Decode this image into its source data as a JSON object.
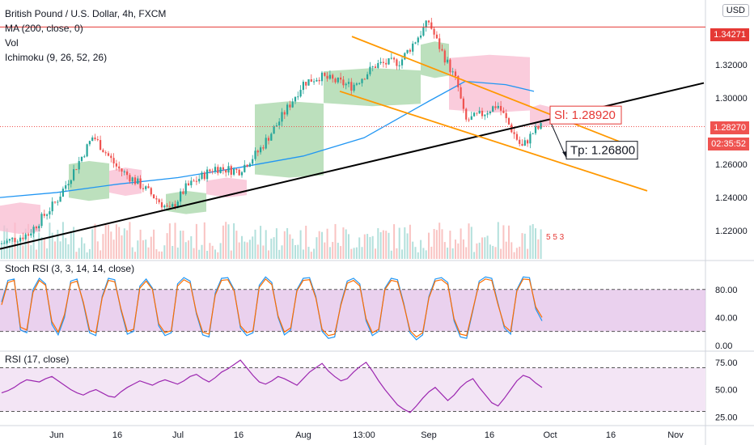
{
  "legend": {
    "title": "British Pound / U.S. Dollar, 4h, FXCM",
    "ma": "MA (200, close, 0)",
    "vol": "Vol",
    "ichimoku": "Ichimoku (9, 26, 52, 26)"
  },
  "currency_button": "USD",
  "price_badges": {
    "resistance": "1.34271",
    "current": "1.28270",
    "countdown": "02:35:52"
  },
  "annotations": {
    "sl": "Sl: 1.28920",
    "tp": "Tp: 1.26800",
    "vol_overflow": "5 5 3"
  },
  "colors": {
    "resistance_line": "#e53935",
    "channel": "#ff9800",
    "trendline": "#000000",
    "ma": "#2196f3",
    "bull": "#26a69a",
    "bear": "#ef5350",
    "stoch_k": "#2196f3",
    "stoch_d": "#ff6d00",
    "rsi": "#9c27b0",
    "stoch_band": "#e1bee7",
    "rsi_band": "#f3e5f5"
  },
  "chart_data": [
    {
      "type": "candlestick",
      "title": "British Pound / U.S. Dollar, 4h, FXCM",
      "x_ticks": [
        "Jun",
        "16",
        "Jul",
        "16",
        "Aug",
        "13:00",
        "Sep",
        "16",
        "Oct",
        "16",
        "Nov"
      ],
      "y_ticks": [
        1.22,
        1.24,
        1.26,
        1.28,
        1.3,
        1.32,
        1.34
      ],
      "ylim": [
        1.203,
        1.359
      ],
      "x_index": [
        "May 20",
        "Jun 1",
        "Jun 16",
        "Jul 1",
        "Jul 16",
        "Aug 1",
        "Aug 16",
        "Sep 1",
        "Sep 16",
        "Oct 1",
        "Oct 16",
        "Nov 1"
      ],
      "close_path": [
        [
          "May 18",
          1.212
        ],
        [
          "May 25",
          1.218
        ],
        [
          "Jun 1",
          1.238
        ],
        [
          "Jun 8",
          1.268
        ],
        [
          "Jun 10",
          1.277
        ],
        [
          "Jun 16",
          1.258
        ],
        [
          "Jun 22",
          1.247
        ],
        [
          "Jun 29",
          1.232
        ],
        [
          "Jul 3",
          1.246
        ],
        [
          "Jul 10",
          1.258
        ],
        [
          "Jul 16",
          1.256
        ],
        [
          "Jul 21",
          1.268
        ],
        [
          "Jul 26",
          1.286
        ],
        [
          "Aug 1",
          1.309
        ],
        [
          "Aug 5",
          1.313
        ],
        [
          "Aug 13",
          1.307
        ],
        [
          "Aug 19",
          1.32
        ],
        [
          "Aug 25",
          1.322
        ],
        [
          "Sep 1",
          1.346
        ],
        [
          "Sep 3",
          1.334
        ],
        [
          "Sep 8",
          1.309
        ],
        [
          "Sep 10",
          1.286
        ],
        [
          "Sep 14",
          1.29
        ],
        [
          "Sep 18",
          1.296
        ],
        [
          "Sep 21",
          1.283
        ],
        [
          "Sep 24",
          1.27
        ],
        [
          "Sep 27",
          1.28
        ],
        [
          "Sep 29",
          1.283
        ]
      ],
      "ma_200": [
        [
          "May 18",
          1.24
        ],
        [
          "Jun 1",
          1.243
        ],
        [
          "Jun 16",
          1.248
        ],
        [
          "Jul 1",
          1.252
        ],
        [
          "Jul 16",
          1.258
        ],
        [
          "Aug 1",
          1.265
        ],
        [
          "Aug 16",
          1.276
        ],
        [
          "Sep 1",
          1.298
        ],
        [
          "Sep 10",
          1.31
        ],
        [
          "Sep 20",
          1.308
        ],
        [
          "Sep 27",
          1.304
        ]
      ],
      "cloud_segments": [
        {
          "from": "May 18",
          "to": "May 28",
          "top": 1.237,
          "bottom": 1.218,
          "bullish": false
        },
        {
          "from": "Jun 4",
          "to": "Jun 14",
          "top": 1.262,
          "bottom": 1.238,
          "bullish": true
        },
        {
          "from": "Jun 14",
          "to": "Jun 22",
          "top": 1.258,
          "bottom": 1.241,
          "bullish": false
        },
        {
          "from": "Jun 28",
          "to": "Jul 8",
          "top": 1.244,
          "bottom": 1.23,
          "bullish": true
        },
        {
          "from": "Jul 8",
          "to": "Jul 18",
          "top": 1.252,
          "bottom": 1.24,
          "bullish": false
        },
        {
          "from": "Jul 20",
          "to": "Aug 6",
          "top": 1.298,
          "bottom": 1.252,
          "bullish": true
        },
        {
          "from": "Aug 6",
          "to": "Aug 30",
          "top": 1.318,
          "bottom": 1.295,
          "bullish": true
        },
        {
          "from": "Aug 30",
          "to": "Sep 6",
          "top": 1.334,
          "bottom": 1.312,
          "bullish": true
        },
        {
          "from": "Sep 6",
          "to": "Sep 26",
          "top": 1.326,
          "bottom": 1.291,
          "bullish": false
        },
        {
          "from": "Sep 26",
          "to": "Oct 1",
          "top": 1.296,
          "bottom": 1.282,
          "bullish": false
        }
      ],
      "drawings": {
        "resistance": 1.34271,
        "current_price": 1.2827,
        "trendline": [
          [
            "May 18",
            1.209
          ],
          [
            "Nov 8",
            1.309
          ]
        ],
        "channel_upper": [
          [
            "Aug 13",
            1.337
          ],
          [
            "Oct 22",
            1.27
          ]
        ],
        "channel_lower": [
          [
            "Aug 10",
            1.304
          ],
          [
            "Oct 25",
            1.244
          ]
        ],
        "arrow": [
          [
            "Oct 1",
            1.286
          ],
          [
            "Oct 5",
            1.264
          ]
        ],
        "stop_loss": 1.2892,
        "take_profit": 1.268
      }
    },
    {
      "type": "line",
      "title": "Stoch RSI (3, 3, 14, 14, close)",
      "y_ticks": [
        0.0,
        40.0,
        80.0
      ],
      "ylim": [
        -6,
        118
      ],
      "band": [
        20,
        80
      ],
      "series": [
        {
          "values": [
            62,
            93,
            95,
            22,
            18,
            80,
            96,
            88,
            30,
            15,
            40,
            92,
            95,
            60,
            18,
            14,
            70,
            96,
            94,
            50,
            16,
            20,
            85,
            95,
            82,
            28,
            14,
            18,
            88,
            97,
            92,
            45,
            15,
            12,
            75,
            96,
            97,
            80,
            25,
            14,
            18,
            86,
            98,
            90,
            40,
            15,
            22,
            80,
            96,
            97,
            70,
            20,
            10,
            12,
            60,
            92,
            96,
            88,
            35,
            14,
            20,
            82,
            96,
            94,
            60,
            18,
            8,
            15,
            70,
            95,
            97,
            90,
            35,
            12,
            10,
            50,
            92,
            98,
            96,
            60,
            25,
            16,
            80,
            98,
            97,
            52,
            35
          ]
        },
        {
          "values": [
            58,
            90,
            93,
            26,
            22,
            76,
            93,
            86,
            34,
            19,
            44,
            89,
            92,
            62,
            22,
            18,
            68,
            93,
            91,
            52,
            20,
            23,
            82,
            92,
            80,
            31,
            18,
            21,
            85,
            94,
            89,
            47,
            19,
            16,
            72,
            93,
            94,
            78,
            28,
            18,
            21,
            83,
            95,
            87,
            42,
            19,
            25,
            78,
            93,
            94,
            68,
            23,
            14,
            16,
            58,
            89,
            93,
            85,
            38,
            18,
            23,
            80,
            93,
            91,
            58,
            21,
            12,
            18,
            68,
            92,
            94,
            87,
            38,
            16,
            14,
            52,
            89,
            95,
            93,
            58,
            28,
            20,
            78,
            95,
            94,
            55,
            40
          ]
        }
      ]
    },
    {
      "type": "line",
      "title": "RSI (17, close)",
      "y_ticks": [
        25.0,
        50.0,
        75.0
      ],
      "ylim": [
        20,
        83
      ],
      "band": [
        30,
        70
      ],
      "series": [
        {
          "values": [
            47,
            49,
            52,
            56,
            59,
            58,
            57,
            60,
            62,
            58,
            54,
            50,
            47,
            45,
            48,
            50,
            47,
            44,
            43,
            48,
            52,
            55,
            58,
            56,
            54,
            57,
            59,
            57,
            55,
            58,
            62,
            64,
            60,
            57,
            61,
            66,
            69,
            73,
            77,
            70,
            63,
            57,
            55,
            58,
            62,
            60,
            57,
            54,
            60,
            66,
            70,
            74,
            67,
            62,
            58,
            60,
            66,
            71,
            75,
            67,
            58,
            50,
            43,
            36,
            32,
            29,
            35,
            42,
            48,
            52,
            46,
            40,
            45,
            52,
            57,
            60,
            52,
            45,
            38,
            35,
            42,
            50,
            58,
            63,
            61,
            56,
            52
          ]
        }
      ]
    }
  ]
}
